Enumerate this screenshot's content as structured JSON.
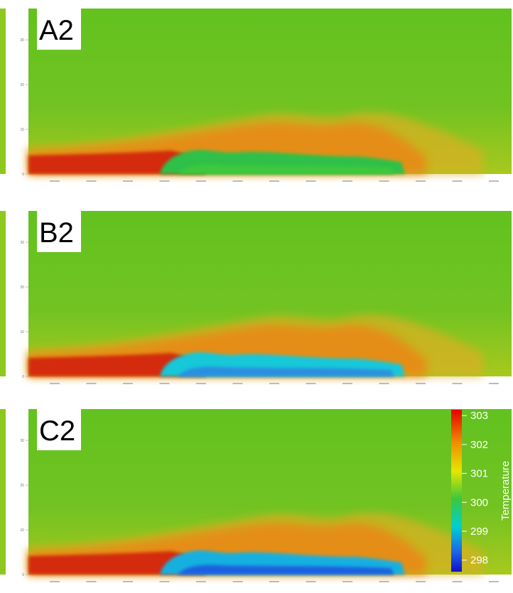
{
  "panels": [
    {
      "label": "A2",
      "yticks": [
        0,
        10,
        20,
        30
      ],
      "ylim": [
        0,
        37
      ]
    },
    {
      "label": "B2",
      "yticks": [
        0,
        10,
        20,
        30
      ],
      "ylim": [
        0,
        37
      ]
    },
    {
      "label": "C2",
      "yticks": [
        0,
        10,
        20,
        30
      ],
      "ylim": [
        0,
        37
      ]
    }
  ],
  "colorbar": {
    "title": "Temperature",
    "ticks": [
      298,
      299,
      300,
      301,
      302,
      303
    ],
    "range": [
      297.6,
      303.2
    ]
  }
}
